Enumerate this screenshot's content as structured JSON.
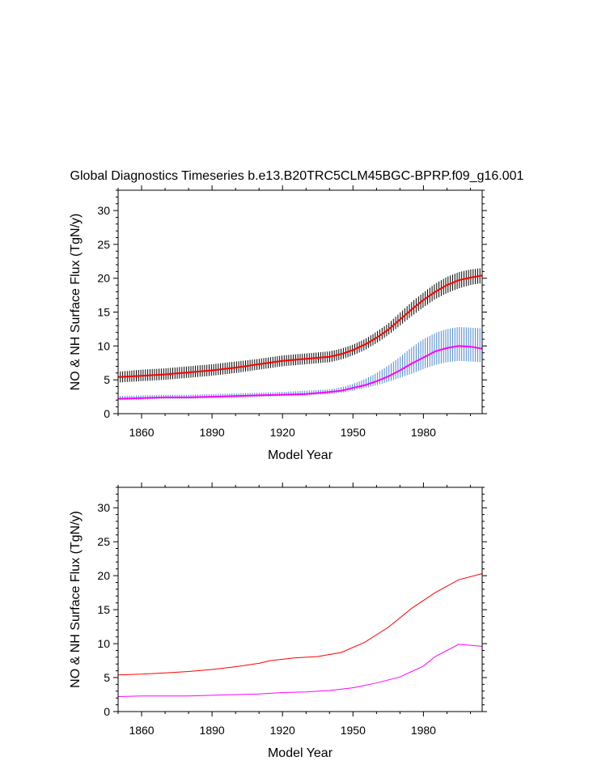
{
  "page_title": "Global Diagnostics Timeseries b.e13.B20TRC5CLM45BGC-BPRP.f09_g16.001",
  "colors": {
    "monthly_total": "#000000",
    "annual_total": "#ff0000",
    "monthly_second": "#4a86d8",
    "annual_second": "#ff00ff",
    "axis": "#000000"
  },
  "chart_data": [
    {
      "type": "line",
      "title": "Global Diagnostics Timeseries b.e13.B20TRC5CLM45BGC-BPRP.f09_g16.001",
      "xlabel": "Model Year",
      "ylabel": "NO & NH Surface Flux (TgN/y)",
      "xlim": [
        1850,
        2005
      ],
      "ylim": [
        0,
        33
      ],
      "xticks": [
        1860,
        1890,
        1920,
        1950,
        1980
      ],
      "yticks": [
        0,
        5,
        10,
        15,
        20,
        25,
        30
      ],
      "xtick_labels": [
        "1860",
        "1890",
        "1920",
        "1950",
        "1980"
      ],
      "ytick_labels": [
        "0",
        "5",
        "10",
        "15",
        "20",
        "25",
        "30"
      ],
      "series": [
        {
          "name": "monthly_total",
          "style": "monthly_band",
          "color": "#000000",
          "x": [
            1850,
            1860,
            1870,
            1880,
            1890,
            1900,
            1910,
            1920,
            1930,
            1940,
            1945,
            1950,
            1955,
            1960,
            1965,
            1970,
            1975,
            1980,
            1985,
            1990,
            1995,
            2000,
            2005
          ],
          "low": [
            4.6,
            4.8,
            5.0,
            5.3,
            5.6,
            6.0,
            6.5,
            7.0,
            7.3,
            7.6,
            8.0,
            8.6,
            9.4,
            10.4,
            11.6,
            13.0,
            14.4,
            15.7,
            16.9,
            17.8,
            18.5,
            19.0,
            19.3
          ],
          "high": [
            6.2,
            6.5,
            6.7,
            7.0,
            7.3,
            7.7,
            8.1,
            8.6,
            8.9,
            9.2,
            9.6,
            10.2,
            11.0,
            12.1,
            13.3,
            14.9,
            16.5,
            17.9,
            19.2,
            20.2,
            20.9,
            21.3,
            21.5
          ]
        },
        {
          "name": "annual_total",
          "style": "line",
          "color": "#ff0000",
          "x": [
            1850,
            1860,
            1870,
            1880,
            1890,
            1900,
            1910,
            1920,
            1930,
            1940,
            1945,
            1950,
            1955,
            1960,
            1965,
            1970,
            1975,
            1980,
            1985,
            1990,
            1995,
            2000,
            2005
          ],
          "values": [
            5.4,
            5.6,
            5.8,
            6.1,
            6.4,
            6.8,
            7.3,
            7.8,
            8.1,
            8.4,
            8.8,
            9.4,
            10.2,
            11.2,
            12.4,
            13.9,
            15.4,
            16.8,
            18.0,
            19.0,
            19.7,
            20.1,
            20.4
          ]
        },
        {
          "name": "monthly_second",
          "style": "monthly_band",
          "color": "#4a86d8",
          "x": [
            1850,
            1860,
            1870,
            1880,
            1890,
            1900,
            1910,
            1920,
            1930,
            1940,
            1945,
            1950,
            1955,
            1960,
            1965,
            1970,
            1975,
            1980,
            1985,
            1990,
            1995,
            2000,
            2005
          ],
          "low": [
            2.0,
            2.1,
            2.2,
            2.2,
            2.3,
            2.4,
            2.5,
            2.6,
            2.7,
            2.9,
            3.1,
            3.4,
            3.8,
            4.2,
            4.7,
            5.3,
            5.9,
            6.6,
            7.2,
            7.6,
            7.8,
            7.7,
            7.6
          ],
          "high": [
            2.6,
            2.7,
            2.8,
            2.8,
            2.9,
            3.0,
            3.1,
            3.2,
            3.4,
            3.6,
            3.9,
            4.4,
            5.1,
            6.0,
            7.1,
            8.4,
            9.8,
            11.0,
            11.9,
            12.5,
            12.8,
            12.7,
            12.6
          ]
        },
        {
          "name": "annual_second",
          "style": "line",
          "color": "#ff00ff",
          "x": [
            1850,
            1860,
            1870,
            1880,
            1890,
            1900,
            1910,
            1920,
            1930,
            1940,
            1945,
            1950,
            1955,
            1960,
            1965,
            1970,
            1975,
            1980,
            1985,
            1990,
            1995,
            2000,
            2005
          ],
          "values": [
            2.2,
            2.3,
            2.4,
            2.4,
            2.5,
            2.6,
            2.7,
            2.8,
            2.9,
            3.2,
            3.4,
            3.8,
            4.2,
            4.8,
            5.5,
            6.4,
            7.4,
            8.3,
            9.2,
            9.7,
            10.0,
            9.9,
            9.6
          ]
        }
      ]
    },
    {
      "type": "line",
      "title": "",
      "xlabel": "Model Year",
      "ylabel": "NO & NH Surface Flux (TgN/y)",
      "xlim": [
        1850,
        2005
      ],
      "ylim": [
        0,
        33
      ],
      "xticks": [
        1860,
        1890,
        1920,
        1950,
        1980
      ],
      "yticks": [
        0,
        5,
        10,
        15,
        20,
        25,
        30
      ],
      "xtick_labels": [
        "1860",
        "1890",
        "1920",
        "1950",
        "1980"
      ],
      "ytick_labels": [
        "0",
        "5",
        "10",
        "15",
        "20",
        "25",
        "30"
      ],
      "series": [
        {
          "name": "annual_total",
          "style": "line",
          "color": "#ff0000",
          "x": [
            1850,
            1860,
            1870,
            1880,
            1890,
            1900,
            1910,
            1915,
            1920,
            1925,
            1935,
            1945,
            1955,
            1965,
            1975,
            1985,
            1995,
            2005
          ],
          "values": [
            5.4,
            5.5,
            5.7,
            5.9,
            6.2,
            6.6,
            7.1,
            7.5,
            7.7,
            7.9,
            8.1,
            8.7,
            10.2,
            12.4,
            15.2,
            17.5,
            19.4,
            20.3
          ]
        },
        {
          "name": "annual_second",
          "style": "line",
          "color": "#ff00ff",
          "x": [
            1850,
            1860,
            1870,
            1880,
            1890,
            1900,
            1910,
            1920,
            1930,
            1940,
            1950,
            1960,
            1970,
            1980,
            1985,
            1995,
            2005
          ],
          "values": [
            2.2,
            2.3,
            2.3,
            2.3,
            2.4,
            2.5,
            2.6,
            2.8,
            2.9,
            3.1,
            3.5,
            4.2,
            5.1,
            6.7,
            8.1,
            9.9,
            9.6
          ]
        }
      ]
    }
  ]
}
